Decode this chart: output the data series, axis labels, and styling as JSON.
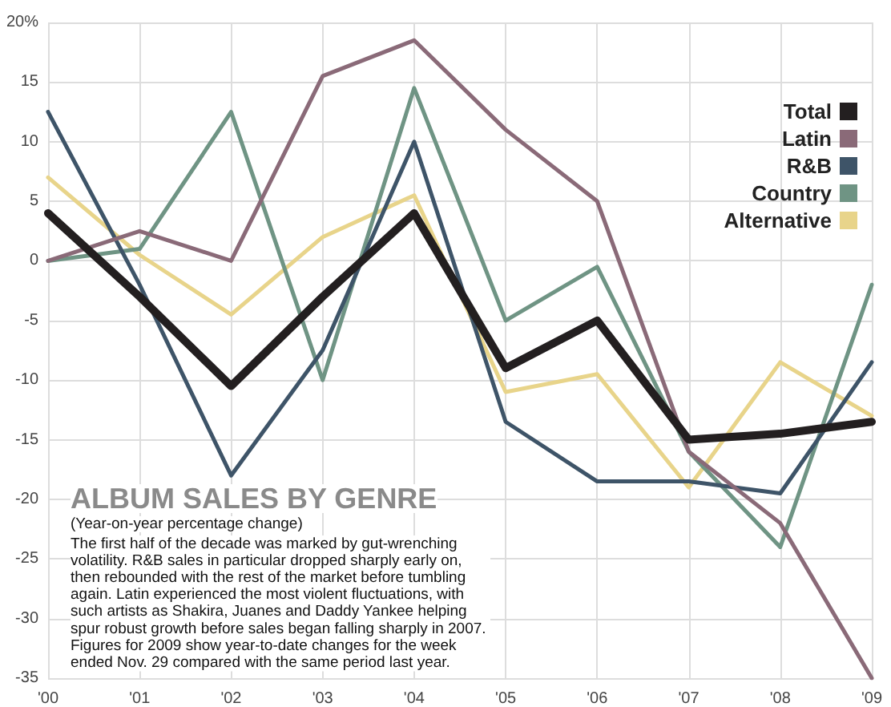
{
  "chart_data": {
    "type": "line",
    "title": "ALBUM SALES BY GENRE",
    "subtitle": "(Year-on-year percentage change)",
    "annotations": [
      "The first half of the decade was marked by gut-wrenching volatility. R&B sales in particular dropped sharply early on, then rebounded with the rest of the market before tumbling again. Latin experienced the most violent fluctuations, with such artists as Shakira, Juanes and Daddy Yankee helping spur robust growth before sales began falling sharply in 2007. Figures for 2009 show year-to-date changes for the week ended Nov. 29 compared with the same period last year."
    ],
    "categories": [
      "'00",
      "'01",
      "'02",
      "'03",
      "'04",
      "'05",
      "'06",
      "'07",
      "'08",
      "'09"
    ],
    "series": [
      {
        "name": "Total",
        "color": "#231f20",
        "values": [
          4,
          -3,
          -10.5,
          -3,
          4,
          -9,
          -5,
          -15,
          -14.5,
          -13.5
        ]
      },
      {
        "name": "Latin",
        "color": "#8a6a78",
        "values": [
          0,
          2.5,
          0,
          15.5,
          18.5,
          11,
          5,
          -16,
          -22,
          -35
        ]
      },
      {
        "name": "R&B",
        "color": "#3e5468",
        "values": [
          12.5,
          -2,
          -18,
          -7.5,
          10,
          -13.5,
          -18.5,
          -18.5,
          -19.5,
          -8.5
        ]
      },
      {
        "name": "Country",
        "color": "#6f9484",
        "values": [
          0,
          1,
          12.5,
          -10,
          14.5,
          -5,
          -0.5,
          -16,
          -24,
          -2
        ]
      },
      {
        "name": "Alternative",
        "color": "#e8d48a",
        "values": [
          7,
          0.5,
          -4.5,
          2,
          5.5,
          -11,
          -9.5,
          -19,
          -8.5,
          -13
        ]
      }
    ],
    "ylim": [
      -35,
      20
    ],
    "yticks": [
      -35,
      -30,
      -25,
      -20,
      -15,
      -10,
      -5,
      0,
      5,
      10,
      15,
      {
        "value": 20,
        "label": "20%"
      }
    ],
    "grid": true,
    "legend": "top right",
    "marker": "none",
    "line_style": "solid"
  }
}
